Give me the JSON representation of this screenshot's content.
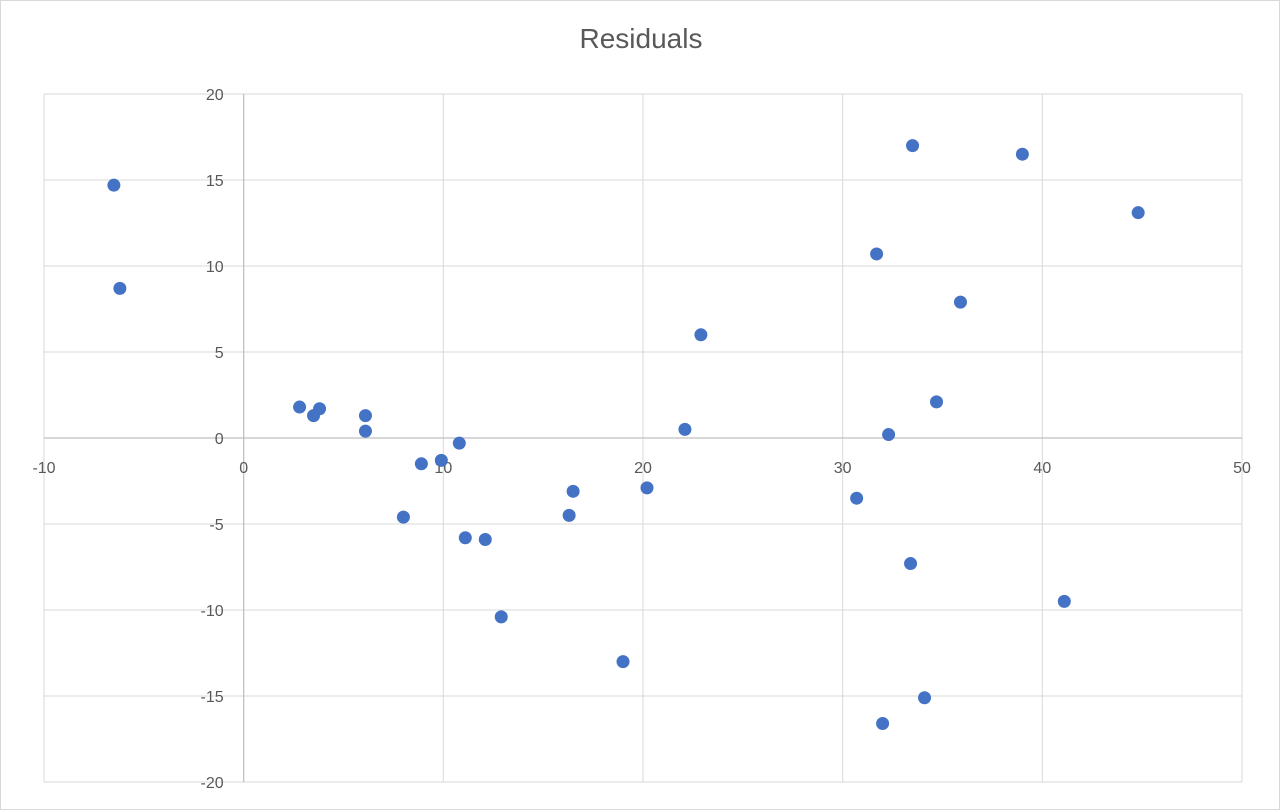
{
  "chart_data": {
    "type": "scatter",
    "title": "Residuals",
    "xlabel": "",
    "ylabel": "",
    "xlim": [
      -10,
      50
    ],
    "ylim": [
      -20,
      20
    ],
    "x_ticks": [
      -10,
      0,
      10,
      20,
      30,
      40,
      50
    ],
    "y_ticks": [
      -20,
      -15,
      -10,
      -5,
      0,
      5,
      10,
      15,
      20
    ],
    "grid": true,
    "legend": "none",
    "marker_color": "#4472C4",
    "series": [
      {
        "x": [
          -6.5,
          -6.2,
          2.8,
          3.5,
          3.8,
          6.1,
          6.1,
          8.0,
          8.9,
          9.9,
          10.8,
          11.1,
          12.1,
          12.9,
          16.3,
          16.5,
          19.0,
          20.2,
          22.1,
          22.9,
          30.7,
          31.7,
          32.0,
          32.3,
          33.4,
          33.5,
          34.1,
          34.7,
          35.9,
          39.0,
          41.1,
          44.8
        ],
        "y": [
          14.7,
          8.7,
          1.8,
          1.3,
          1.7,
          0.4,
          1.3,
          -4.6,
          -1.5,
          -1.3,
          -0.3,
          -5.8,
          -5.9,
          -10.4,
          -4.5,
          -3.1,
          -13.0,
          -2.9,
          0.5,
          6.0,
          -3.5,
          10.7,
          -16.6,
          0.2,
          -7.3,
          17.0,
          -15.1,
          2.1,
          7.9,
          16.5,
          -9.5,
          13.1
        ]
      }
    ]
  }
}
